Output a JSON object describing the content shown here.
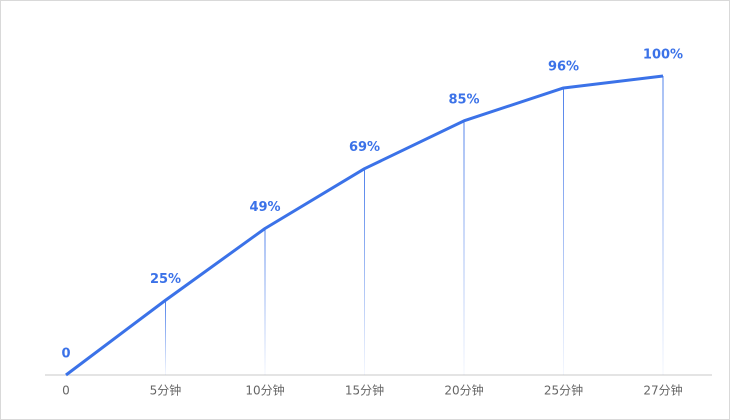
{
  "chart_data": {
    "type": "line",
    "categories": [
      "0",
      "5分钟",
      "10分钟",
      "15分钟",
      "20分钟",
      "25分钟",
      "27分钟"
    ],
    "values": [
      0,
      25,
      49,
      69,
      85,
      96,
      100
    ],
    "value_labels": [
      "0",
      "25%",
      "49%",
      "69%",
      "85%",
      "96%",
      "100%"
    ],
    "color": "#3b72e8",
    "ylim": [
      0,
      100
    ]
  }
}
